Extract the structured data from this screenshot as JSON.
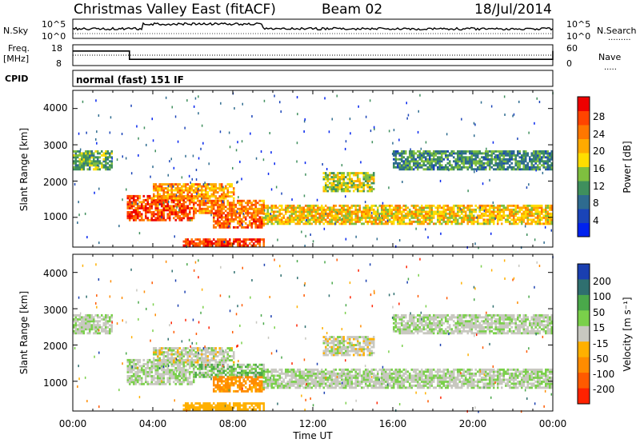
{
  "header": {
    "title": "Christmas Valley East (fitACF)",
    "beam": "Beam 02",
    "date": "18/Jul/2014"
  },
  "sky_panel": {
    "left_label": "N.Sky",
    "right_label": "N.Search",
    "right_legend": ".........",
    "ticks": [
      "10^5",
      "10^0"
    ]
  },
  "freq_panel": {
    "left_label_1": "Freq.",
    "left_label_2": "[MHz]",
    "left_ticks": [
      "18",
      "8"
    ],
    "right_ticks": [
      "60",
      "0"
    ],
    "right_label": "Nave",
    "right_legend": "....."
  },
  "cpid_panel": {
    "label": "CPID",
    "value": "normal (fast) 151 IF"
  },
  "power_panel": {
    "ylabel": "Slant Range [km]",
    "yticks": [
      "4000",
      "3000",
      "2000",
      "1000"
    ],
    "colorbar_label": "Power [dB]",
    "colorbar_ticks": [
      "28",
      "24",
      "20",
      "16",
      "12",
      "8",
      "4"
    ],
    "colors": [
      "#0022ee",
      "#1a44b8",
      "#2e6b8f",
      "#3f8f5d",
      "#7fbf3f",
      "#ffdd00",
      "#ffaa00",
      "#ff7700",
      "#ff4400",
      "#ee0000"
    ]
  },
  "velocity_panel": {
    "ylabel": "Slant Range [km]",
    "yticks": [
      "4000",
      "3000",
      "2000",
      "1000"
    ],
    "colorbar_label": "Velocity [m s⁻¹]",
    "colorbar_ticks": [
      "200",
      "100",
      "50",
      "15",
      "-15",
      "-50",
      "-100",
      "-200"
    ],
    "colors": [
      "#1a3fb0",
      "#2f6f6f",
      "#4aa84a",
      "#7ad04a",
      "#c8c8c0",
      "#ffb000",
      "#ff8c00",
      "#ff5a00",
      "#ff2200"
    ]
  },
  "xaxis": {
    "ticks": [
      "00:00",
      "04:00",
      "08:00",
      "12:00",
      "16:00",
      "20:00",
      "00:00"
    ],
    "label": "Time UT"
  },
  "chart_data": {
    "type": "heatmap",
    "title": "Christmas Valley East (fitACF)",
    "xlabel": "Time UT",
    "ylabel": "Slant Range [km]",
    "xlim": [
      "00:00",
      "24:00"
    ],
    "ylim": [
      180,
      4500
    ],
    "series": [
      {
        "name": "Power [dB]",
        "zrange": [
          0,
          30
        ]
      },
      {
        "name": "Velocity [m s⁻¹]",
        "zrange": [
          -200,
          200
        ]
      }
    ],
    "freq_mhz": {
      "x": [
        "00:00",
        "02:50",
        "15:00",
        "24:00"
      ],
      "values": [
        15,
        11,
        11,
        15
      ]
    },
    "scatter_regions": [
      {
        "t_start": 0.0,
        "t_end": 2.0,
        "range_km": [
          2300,
          2800
        ],
        "power": 12,
        "velocity": 0
      },
      {
        "t_start": 2.7,
        "t_end": 6.0,
        "range_km": [
          900,
          1600
        ],
        "power": 25,
        "velocity": 0
      },
      {
        "t_start": 6.0,
        "t_end": 9.5,
        "range_km": [
          1100,
          1450
        ],
        "power": 22,
        "velocity": 10
      },
      {
        "t_start": 4.0,
        "t_end": 8.0,
        "range_km": [
          1500,
          1900
        ],
        "power": 20,
        "velocity": -5
      },
      {
        "t_start": 5.5,
        "t_end": 9.5,
        "range_km": [
          200,
          400
        ],
        "power": 26,
        "velocity": -30
      },
      {
        "t_start": 7.0,
        "t_end": 9.5,
        "range_km": [
          700,
          1100
        ],
        "power": 24,
        "velocity": -60
      },
      {
        "t_start": 9.5,
        "t_end": 24.0,
        "range_km": [
          800,
          1300
        ],
        "power": 18,
        "velocity": 0
      },
      {
        "t_start": 12.5,
        "t_end": 15.0,
        "range_km": [
          1700,
          2200
        ],
        "power": 15,
        "velocity": -5
      },
      {
        "t_start": 16.0,
        "t_end": 24.0,
        "range_km": [
          2300,
          2800
        ],
        "power": 10,
        "velocity": 0
      }
    ]
  }
}
